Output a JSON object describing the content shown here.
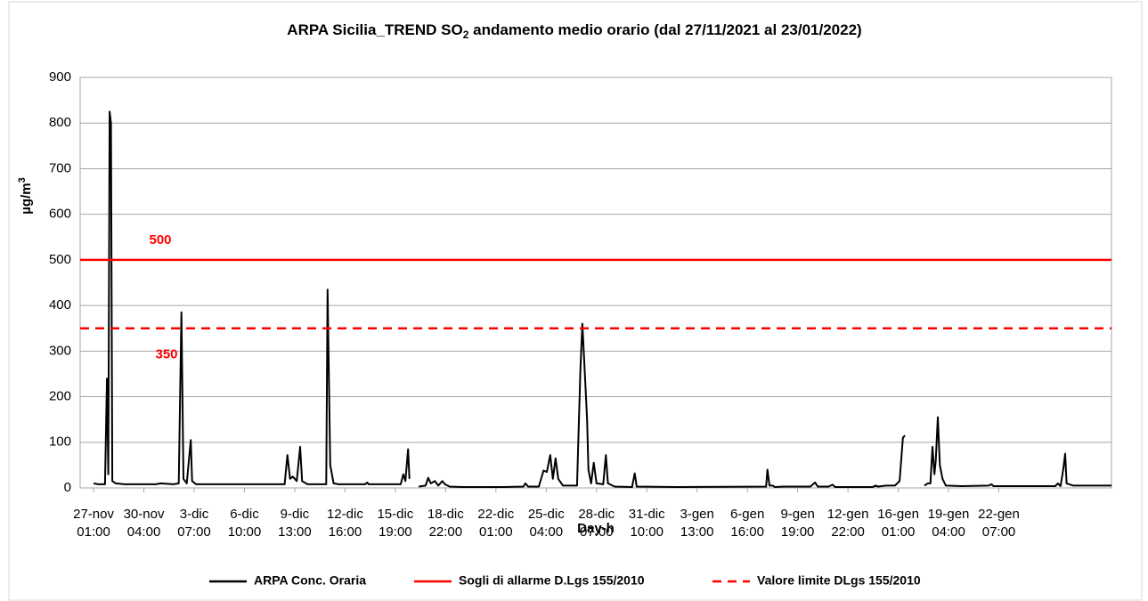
{
  "chart_data": {
    "type": "line",
    "title": {
      "before": "ARPA Sicilia_TREND SO",
      "sub": "2",
      "after": " andamento medio orario (dal 27/11/2021 al 23/01/2022)"
    },
    "y_label": {
      "before": "µg/m",
      "sup": "3"
    },
    "x_label": "Day-h",
    "xlim": [
      0,
      1538
    ],
    "xticks": [
      {
        "value": 20,
        "label": "27-nov 01:00"
      },
      {
        "value": 95,
        "label": "30-nov 04:00"
      },
      {
        "value": 170,
        "label": "3-dic 07:00"
      },
      {
        "value": 245,
        "label": "6-dic 10:00"
      },
      {
        "value": 320,
        "label": "9-dic 13:00"
      },
      {
        "value": 395,
        "label": "12-dic 16:00"
      },
      {
        "value": 470,
        "label": "15-dic 19:00"
      },
      {
        "value": 545,
        "label": "18-dic 22:00"
      },
      {
        "value": 620,
        "label": "22-dic 01:00"
      },
      {
        "value": 695,
        "label": "25-dic 04:00"
      },
      {
        "value": 770,
        "label": "28-dic 07:00"
      },
      {
        "value": 845,
        "label": "31-dic 10:00"
      },
      {
        "value": 920,
        "label": "3-gen 13:00"
      },
      {
        "value": 995,
        "label": "6-gen 16:00"
      },
      {
        "value": 1070,
        "label": "9-gen 19:00"
      },
      {
        "value": 1145,
        "label": "12-gen 22:00"
      },
      {
        "value": 1220,
        "label": "16-gen 01:00"
      },
      {
        "value": 1295,
        "label": "19-gen 04:00"
      },
      {
        "value": 1370,
        "label": "22-gen 07:00"
      }
    ],
    "ylim": [
      0,
      900
    ],
    "yticks": [
      0,
      100,
      200,
      300,
      400,
      500,
      600,
      700,
      800,
      900
    ],
    "grid": true,
    "legend": "bottom",
    "series": [
      {
        "name": "ARPA Conc. Oraria",
        "color": "#000000",
        "x": [
          20,
          27,
          37,
          40,
          42,
          44,
          46,
          48,
          53,
          66,
          113,
          120,
          139,
          147,
          151,
          154,
          159,
          165,
          167,
          173,
          186,
          305,
          309,
          313,
          317,
          323,
          328,
          331,
          339,
          367,
          369,
          373,
          378,
          385,
          425,
          428,
          430,
          478,
          482,
          485,
          489,
          491,
          null,
          505,
          515,
          519,
          523,
          529,
          534,
          540,
          544,
          551,
          571,
          624,
          631,
          661,
          664,
          668,
          684,
          691,
          696,
          701,
          705,
          709,
          713,
          720,
          741,
          746,
          749,
          752,
          756,
          758,
          762,
          766,
          770,
          780,
          784,
          787,
          797,
          823,
          827,
          830,
          890,
          1023,
          1025,
          1028,
          1033,
          1036,
          1049,
          1089,
          1096,
          1100,
          1116,
          1122,
          1126,
          1182,
          1186,
          1190,
          1202,
          1215,
          1222,
          1227,
          1230,
          null,
          1259,
          1264,
          1268,
          1271,
          1274,
          1276,
          1279,
          1282,
          1286,
          1291,
          1315,
          1355,
          1359,
          1362,
          1454,
          1458,
          1462,
          1466,
          1469,
          1471,
          1481,
          1538
        ],
        "values": [
          10,
          8,
          8,
          240,
          30,
          825,
          800,
          15,
          10,
          8,
          8,
          10,
          8,
          10,
          385,
          20,
          10,
          105,
          15,
          8,
          8,
          8,
          72,
          20,
          25,
          15,
          90,
          15,
          8,
          8,
          435,
          50,
          10,
          8,
          8,
          12,
          8,
          8,
          30,
          15,
          85,
          20,
          null,
          3,
          5,
          22,
          10,
          15,
          5,
          15,
          8,
          3,
          2,
          2,
          2,
          3,
          10,
          3,
          3,
          38,
          35,
          72,
          20,
          65,
          20,
          5,
          5,
          260,
          360,
          270,
          150,
          40,
          10,
          55,
          10,
          8,
          72,
          10,
          3,
          2,
          32,
          3,
          2,
          3,
          40,
          5,
          5,
          2,
          3,
          3,
          12,
          3,
          3,
          7,
          2,
          2,
          5,
          3,
          5,
          5,
          15,
          110,
          115,
          null,
          5,
          10,
          10,
          90,
          30,
          60,
          155,
          50,
          20,
          5,
          4,
          5,
          8,
          4,
          4,
          10,
          4,
          40,
          75,
          10,
          5,
          5
        ]
      },
      {
        "name": "Sogli di allarme D.Lgs 155/2010",
        "color": "#ff0000",
        "value": 500,
        "dashed": false
      },
      {
        "name": "Valore limite DLgs 155/2010",
        "color": "#ff0000",
        "value": 350,
        "dashed": true
      }
    ]
  }
}
